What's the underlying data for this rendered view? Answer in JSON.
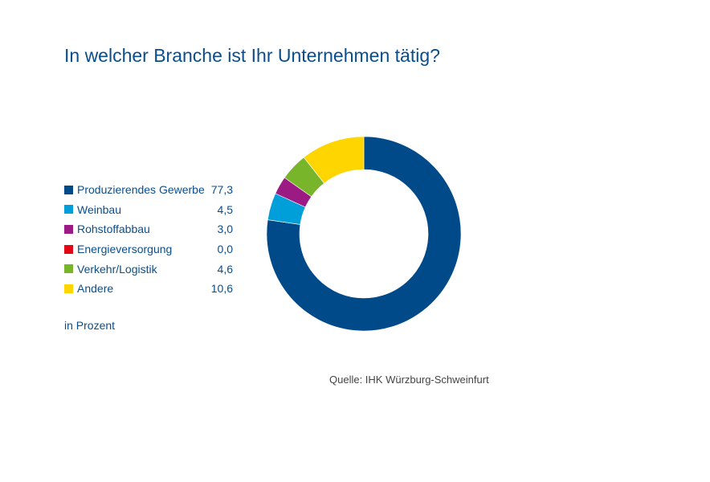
{
  "chart_data": {
    "type": "pie",
    "variant": "donut",
    "title": "In welcher Branche ist Ihr Unternehmen tätig?",
    "unit_label": "in Prozent",
    "source": "Quelle: IHK Würzburg-Schweinfurt",
    "legend_placement": "left",
    "categories": [
      "Produzierendes Gewerbe",
      "Weinbau",
      "Rohstoffabbau",
      "Energieversorgung",
      "Verkehr/Logistik",
      "Andere"
    ],
    "values": [
      77.3,
      4.5,
      3.0,
      0.0,
      4.6,
      10.6
    ],
    "value_labels": [
      "77,3",
      "4,5",
      "3,0",
      "0,0",
      "4,6",
      "10,6"
    ],
    "colors": [
      "#004a8a",
      "#009fd9",
      "#9c1a84",
      "#e30613",
      "#78b52b",
      "#ffd500"
    ]
  }
}
